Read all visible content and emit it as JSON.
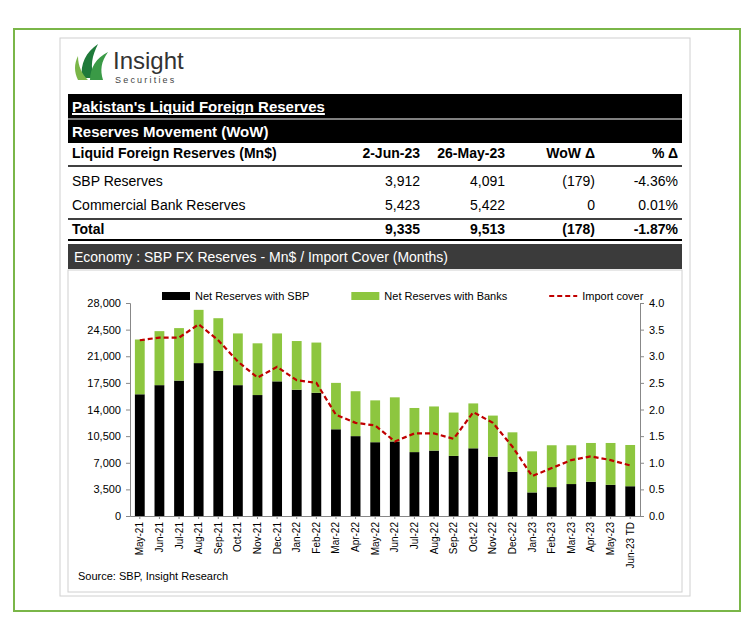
{
  "header": {
    "logo_text": "Insight",
    "logo_subtext": "Securities"
  },
  "table": {
    "title": "Pakistan's Liquid Foreign Reserves",
    "subtitle": "Reserves Movement (WoW)",
    "columns": [
      "Liquid Foreign Reserves (Mn$)",
      "2-Jun-23",
      "26-May-23",
      "WoW Δ",
      "% Δ"
    ],
    "rows": [
      [
        "SBP Reserves",
        "3,912",
        "4,091",
        "(179)",
        "-4.36%"
      ],
      [
        "Commercial Bank Reserves",
        "5,423",
        "5,422",
        "0",
        "0.01%"
      ],
      [
        "Total",
        "9,335",
        "9,513",
        "(178)",
        "-1.87%"
      ]
    ]
  },
  "chart_data": {
    "type": "bar",
    "title": "Economy : SBP FX Reserves - Mn$ / Import Cover (Months)",
    "source": "Source: SBP, Insight Research",
    "stacked": true,
    "legend": "top",
    "grid": false,
    "categories": [
      "May-21",
      "Jun-21",
      "Jul-21",
      "Aug-21",
      "Sep-21",
      "Oct-21",
      "Nov-21",
      "Dec-21",
      "Jan-22",
      "Feb-22",
      "Mar-22",
      "Apr-22",
      "May-22",
      "Jun-22",
      "Jul-22",
      "Aug-22",
      "Sep-22",
      "Oct-22",
      "Nov-22",
      "Dec-22",
      "Jan-23",
      "Feb-23",
      "Mar-23",
      "Apr-23",
      "May-23",
      "Jun-23 TD"
    ],
    "series": [
      {
        "name": "Net Reserves with SBP",
        "type": "bar",
        "color": "#000000",
        "values": [
          16000,
          17200,
          17800,
          20100,
          19100,
          17200,
          15900,
          17700,
          16600,
          16200,
          11400,
          10500,
          9700,
          9800,
          8400,
          8600,
          7900,
          8900,
          7800,
          5800,
          3100,
          3800,
          4200,
          4500,
          4100,
          3912
        ]
      },
      {
        "name": "Net Reserves with Banks",
        "type": "bar",
        "color": "#8dc63f",
        "values": [
          7200,
          7100,
          6900,
          7000,
          6900,
          6800,
          6800,
          6300,
          6400,
          6600,
          6100,
          5900,
          5500,
          5800,
          5800,
          5800,
          5700,
          5900,
          5400,
          5200,
          5400,
          5500,
          5100,
          5100,
          5500,
          5423
        ]
      },
      {
        "name": "Import cover",
        "type": "line",
        "axis": "y2",
        "color": "#c00000",
        "line_style": "dashed",
        "values": [
          3.3,
          3.35,
          3.35,
          3.6,
          3.3,
          2.9,
          2.6,
          2.8,
          2.55,
          2.5,
          1.9,
          1.75,
          1.7,
          1.4,
          1.55,
          1.55,
          1.45,
          1.95,
          1.75,
          1.3,
          0.75,
          0.9,
          1.05,
          1.12,
          1.05,
          0.95
        ]
      }
    ],
    "ylim": [
      0,
      28000
    ],
    "yticks": [
      0,
      {
        "value": 3500,
        "label": "3,500"
      },
      {
        "value": 7000,
        "label": "7,000"
      },
      {
        "value": 10500,
        "label": "10,500"
      },
      {
        "value": 14000,
        "label": "14,000"
      },
      {
        "value": 17500,
        "label": "17,500"
      },
      {
        "value": 21000,
        "label": "21,000"
      },
      {
        "value": 24500,
        "label": "24,500"
      },
      {
        "value": 28000,
        "label": "28,000"
      }
    ],
    "y2lim": [
      0,
      4
    ],
    "y2ticks": [
      {
        "value": 0,
        "label": "0.0"
      },
      0.5,
      {
        "value": 1,
        "label": "1.0"
      },
      1.5,
      {
        "value": 2,
        "label": "2.0"
      },
      2.5,
      {
        "value": 3,
        "label": "3.0"
      },
      3.5,
      {
        "value": 4,
        "label": "4.0"
      }
    ]
  }
}
